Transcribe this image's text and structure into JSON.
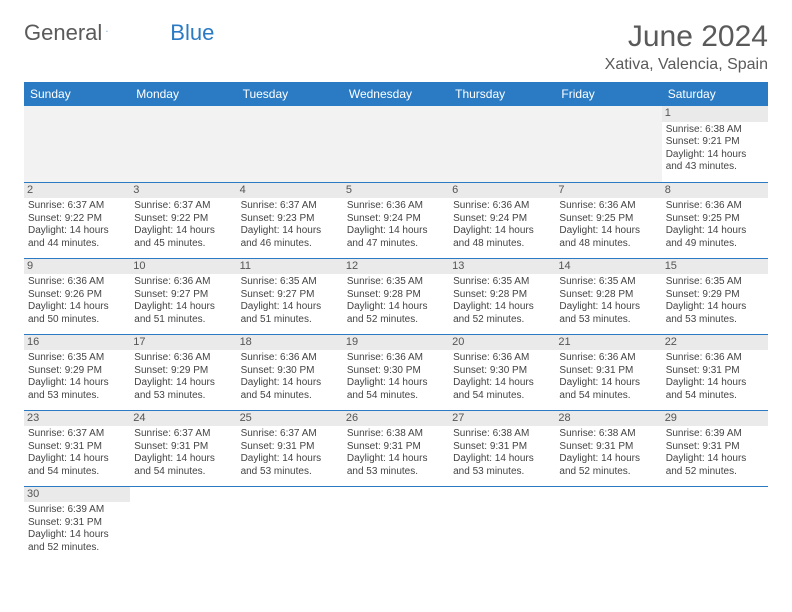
{
  "logo": {
    "text1": "General",
    "text2": "Blue",
    "sail_color": "#2a7bc4"
  },
  "title": "June 2024",
  "location": "Xativa, Valencia, Spain",
  "colors": {
    "header_bg": "#2a7bc4",
    "header_text": "#ffffff",
    "daynum_bg": "#eaeaea",
    "empty_bg": "#f2f2f2",
    "border": "#2a7bc4",
    "body_text": "#444",
    "title_text": "#5a5a5a"
  },
  "day_headers": [
    "Sunday",
    "Monday",
    "Tuesday",
    "Wednesday",
    "Thursday",
    "Friday",
    "Saturday"
  ],
  "weeks": [
    [
      {
        "empty": true
      },
      {
        "empty": true
      },
      {
        "empty": true
      },
      {
        "empty": true
      },
      {
        "empty": true
      },
      {
        "empty": true
      },
      {
        "n": "1",
        "sr": "Sunrise: 6:38 AM",
        "ss": "Sunset: 9:21 PM",
        "d1": "Daylight: 14 hours",
        "d2": "and 43 minutes."
      }
    ],
    [
      {
        "n": "2",
        "sr": "Sunrise: 6:37 AM",
        "ss": "Sunset: 9:22 PM",
        "d1": "Daylight: 14 hours",
        "d2": "and 44 minutes."
      },
      {
        "n": "3",
        "sr": "Sunrise: 6:37 AM",
        "ss": "Sunset: 9:22 PM",
        "d1": "Daylight: 14 hours",
        "d2": "and 45 minutes."
      },
      {
        "n": "4",
        "sr": "Sunrise: 6:37 AM",
        "ss": "Sunset: 9:23 PM",
        "d1": "Daylight: 14 hours",
        "d2": "and 46 minutes."
      },
      {
        "n": "5",
        "sr": "Sunrise: 6:36 AM",
        "ss": "Sunset: 9:24 PM",
        "d1": "Daylight: 14 hours",
        "d2": "and 47 minutes."
      },
      {
        "n": "6",
        "sr": "Sunrise: 6:36 AM",
        "ss": "Sunset: 9:24 PM",
        "d1": "Daylight: 14 hours",
        "d2": "and 48 minutes."
      },
      {
        "n": "7",
        "sr": "Sunrise: 6:36 AM",
        "ss": "Sunset: 9:25 PM",
        "d1": "Daylight: 14 hours",
        "d2": "and 48 minutes."
      },
      {
        "n": "8",
        "sr": "Sunrise: 6:36 AM",
        "ss": "Sunset: 9:25 PM",
        "d1": "Daylight: 14 hours",
        "d2": "and 49 minutes."
      }
    ],
    [
      {
        "n": "9",
        "sr": "Sunrise: 6:36 AM",
        "ss": "Sunset: 9:26 PM",
        "d1": "Daylight: 14 hours",
        "d2": "and 50 minutes."
      },
      {
        "n": "10",
        "sr": "Sunrise: 6:36 AM",
        "ss": "Sunset: 9:27 PM",
        "d1": "Daylight: 14 hours",
        "d2": "and 51 minutes."
      },
      {
        "n": "11",
        "sr": "Sunrise: 6:35 AM",
        "ss": "Sunset: 9:27 PM",
        "d1": "Daylight: 14 hours",
        "d2": "and 51 minutes."
      },
      {
        "n": "12",
        "sr": "Sunrise: 6:35 AM",
        "ss": "Sunset: 9:28 PM",
        "d1": "Daylight: 14 hours",
        "d2": "and 52 minutes."
      },
      {
        "n": "13",
        "sr": "Sunrise: 6:35 AM",
        "ss": "Sunset: 9:28 PM",
        "d1": "Daylight: 14 hours",
        "d2": "and 52 minutes."
      },
      {
        "n": "14",
        "sr": "Sunrise: 6:35 AM",
        "ss": "Sunset: 9:28 PM",
        "d1": "Daylight: 14 hours",
        "d2": "and 53 minutes."
      },
      {
        "n": "15",
        "sr": "Sunrise: 6:35 AM",
        "ss": "Sunset: 9:29 PM",
        "d1": "Daylight: 14 hours",
        "d2": "and 53 minutes."
      }
    ],
    [
      {
        "n": "16",
        "sr": "Sunrise: 6:35 AM",
        "ss": "Sunset: 9:29 PM",
        "d1": "Daylight: 14 hours",
        "d2": "and 53 minutes."
      },
      {
        "n": "17",
        "sr": "Sunrise: 6:36 AM",
        "ss": "Sunset: 9:29 PM",
        "d1": "Daylight: 14 hours",
        "d2": "and 53 minutes."
      },
      {
        "n": "18",
        "sr": "Sunrise: 6:36 AM",
        "ss": "Sunset: 9:30 PM",
        "d1": "Daylight: 14 hours",
        "d2": "and 54 minutes."
      },
      {
        "n": "19",
        "sr": "Sunrise: 6:36 AM",
        "ss": "Sunset: 9:30 PM",
        "d1": "Daylight: 14 hours",
        "d2": "and 54 minutes."
      },
      {
        "n": "20",
        "sr": "Sunrise: 6:36 AM",
        "ss": "Sunset: 9:30 PM",
        "d1": "Daylight: 14 hours",
        "d2": "and 54 minutes."
      },
      {
        "n": "21",
        "sr": "Sunrise: 6:36 AM",
        "ss": "Sunset: 9:31 PM",
        "d1": "Daylight: 14 hours",
        "d2": "and 54 minutes."
      },
      {
        "n": "22",
        "sr": "Sunrise: 6:36 AM",
        "ss": "Sunset: 9:31 PM",
        "d1": "Daylight: 14 hours",
        "d2": "and 54 minutes."
      }
    ],
    [
      {
        "n": "23",
        "sr": "Sunrise: 6:37 AM",
        "ss": "Sunset: 9:31 PM",
        "d1": "Daylight: 14 hours",
        "d2": "and 54 minutes."
      },
      {
        "n": "24",
        "sr": "Sunrise: 6:37 AM",
        "ss": "Sunset: 9:31 PM",
        "d1": "Daylight: 14 hours",
        "d2": "and 54 minutes."
      },
      {
        "n": "25",
        "sr": "Sunrise: 6:37 AM",
        "ss": "Sunset: 9:31 PM",
        "d1": "Daylight: 14 hours",
        "d2": "and 53 minutes."
      },
      {
        "n": "26",
        "sr": "Sunrise: 6:38 AM",
        "ss": "Sunset: 9:31 PM",
        "d1": "Daylight: 14 hours",
        "d2": "and 53 minutes."
      },
      {
        "n": "27",
        "sr": "Sunrise: 6:38 AM",
        "ss": "Sunset: 9:31 PM",
        "d1": "Daylight: 14 hours",
        "d2": "and 53 minutes."
      },
      {
        "n": "28",
        "sr": "Sunrise: 6:38 AM",
        "ss": "Sunset: 9:31 PM",
        "d1": "Daylight: 14 hours",
        "d2": "and 52 minutes."
      },
      {
        "n": "29",
        "sr": "Sunrise: 6:39 AM",
        "ss": "Sunset: 9:31 PM",
        "d1": "Daylight: 14 hours",
        "d2": "and 52 minutes."
      }
    ],
    [
      {
        "n": "30",
        "sr": "Sunrise: 6:39 AM",
        "ss": "Sunset: 9:31 PM",
        "d1": "Daylight: 14 hours",
        "d2": "and 52 minutes."
      },
      {
        "empty": true
      },
      {
        "empty": true
      },
      {
        "empty": true
      },
      {
        "empty": true
      },
      {
        "empty": true
      },
      {
        "empty": true
      }
    ]
  ]
}
